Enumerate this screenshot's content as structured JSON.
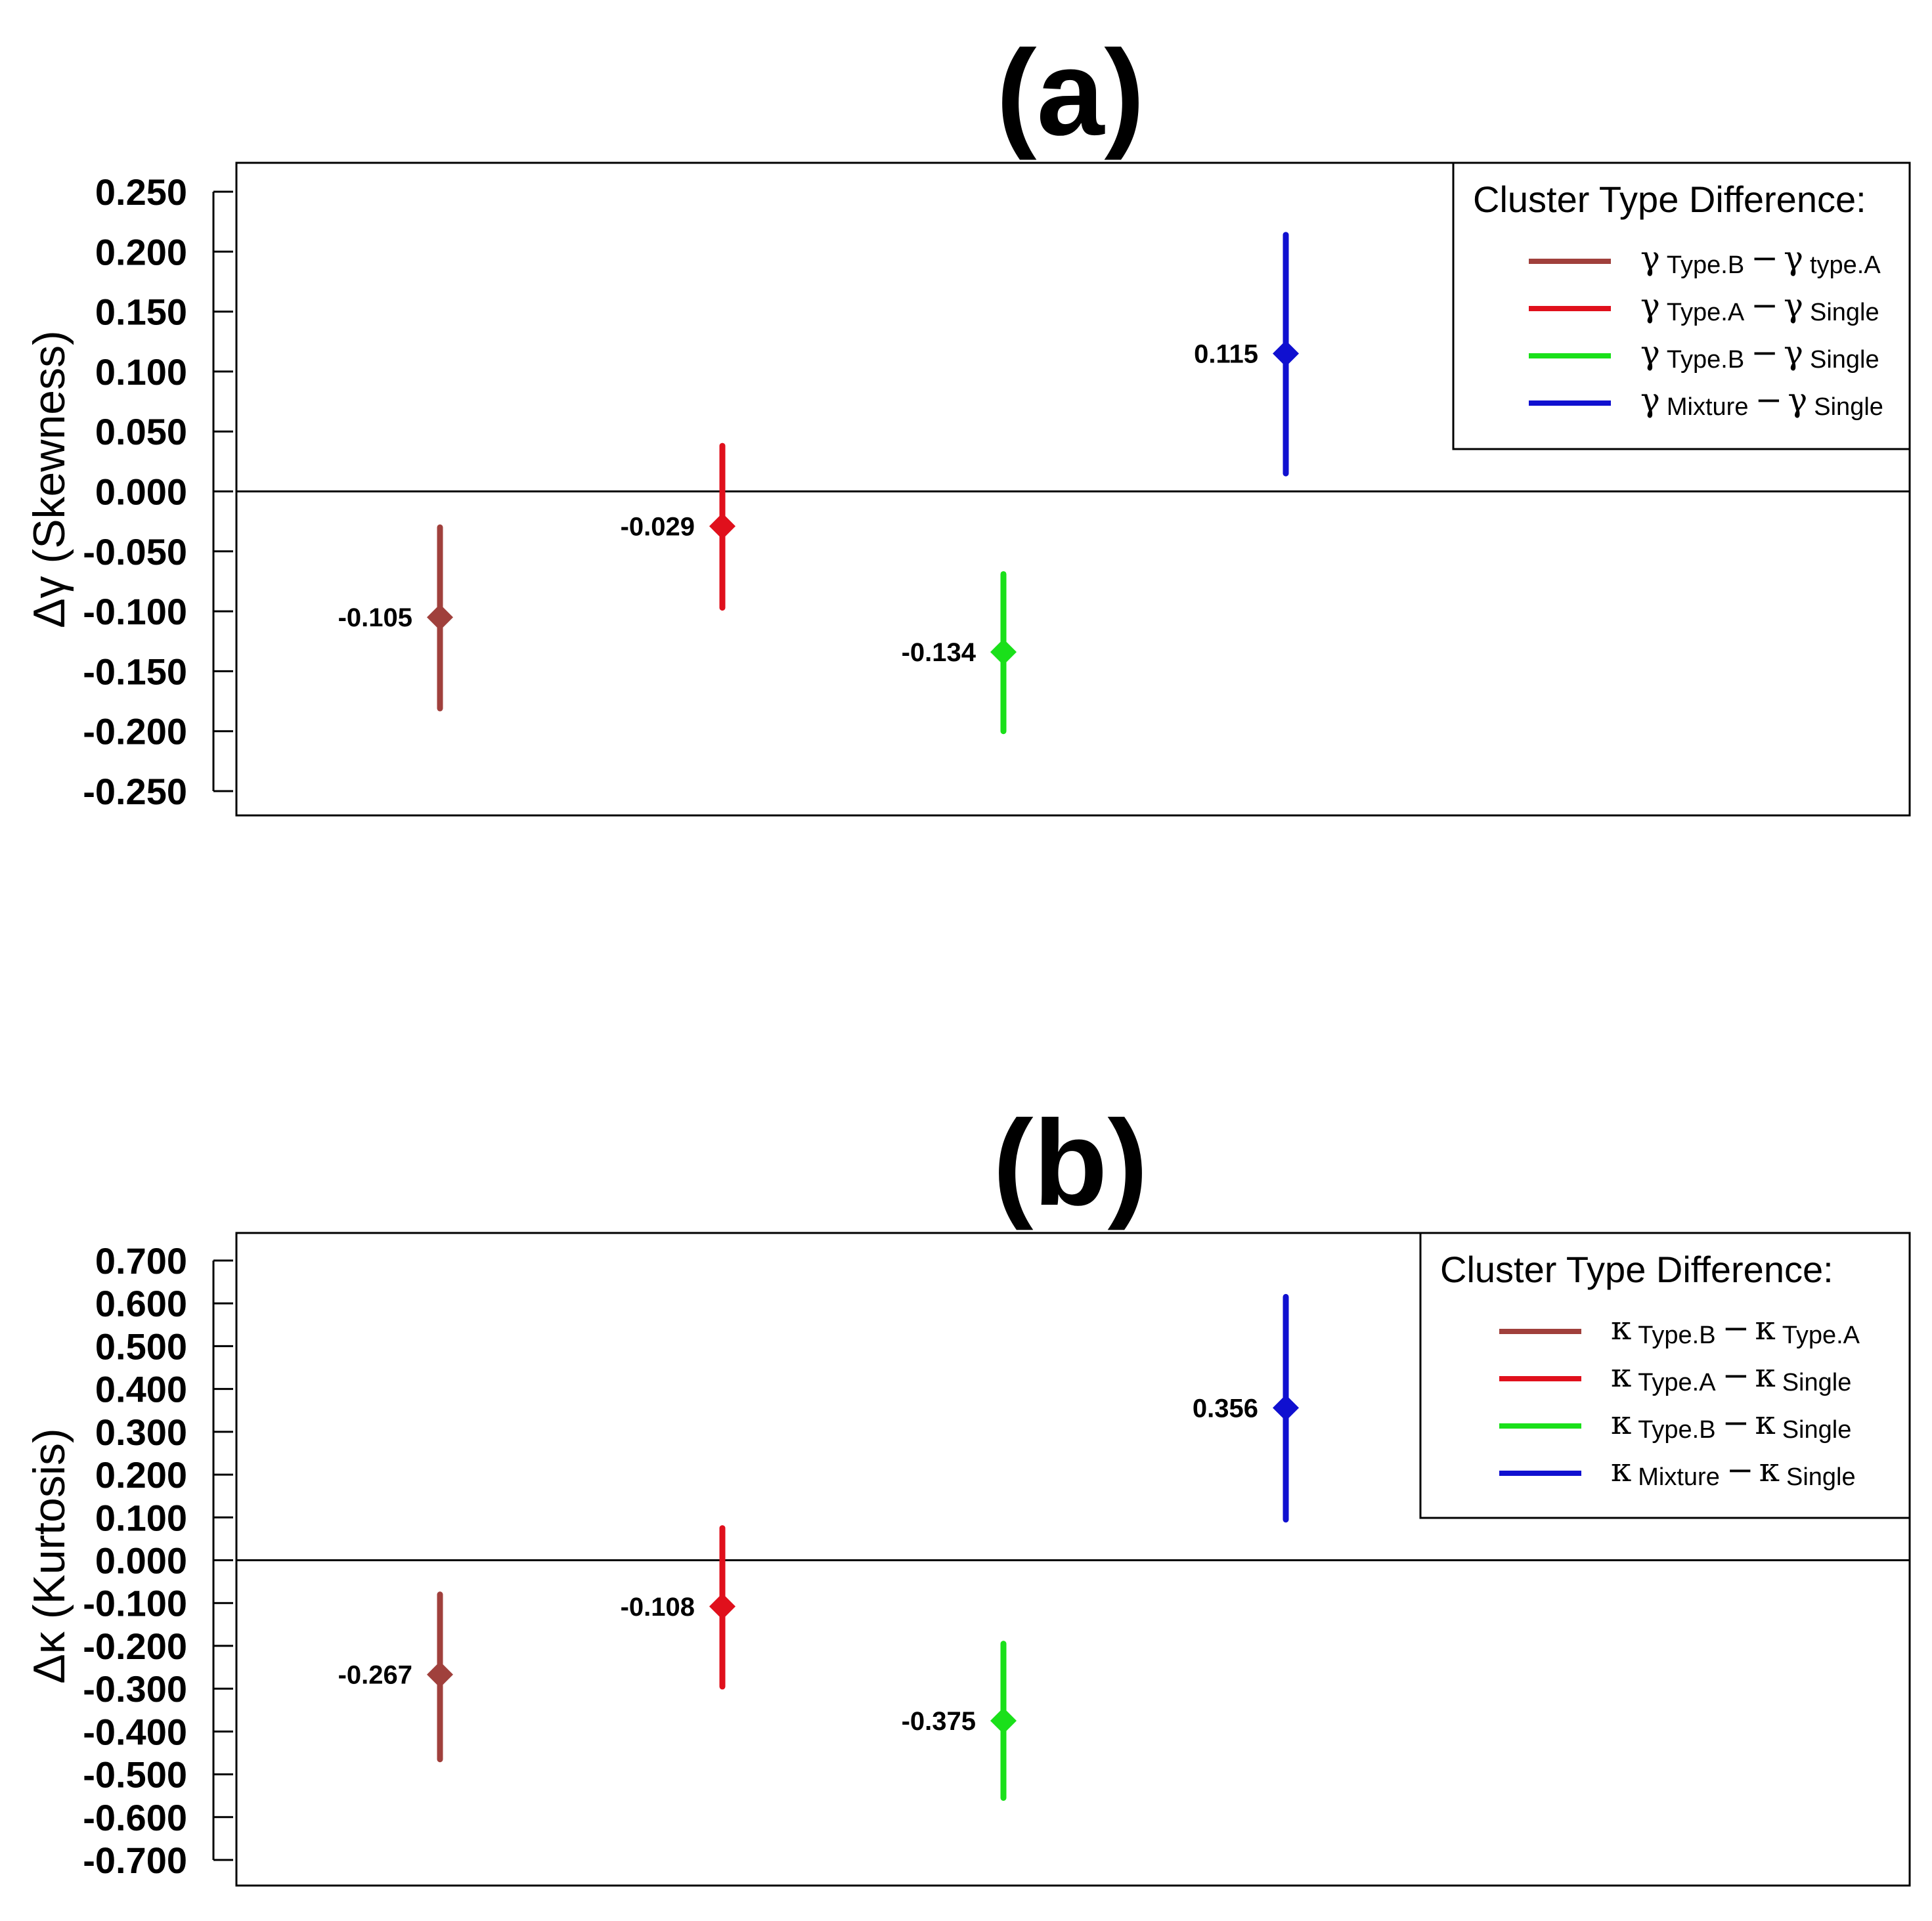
{
  "chart_data": [
    {
      "type": "errorbar",
      "title": "(a)",
      "ylabel": "Δγ (Skewness)",
      "ylim": [
        -0.25,
        0.25
      ],
      "yticks": [
        "0.250",
        "0.200",
        "0.150",
        "0.100",
        "0.050",
        "0.000",
        "-0.050",
        "-0.100",
        "-0.150",
        "-0.200",
        "-0.250"
      ],
      "reference_line": 0,
      "legend": {
        "title": "Cluster Type Difference:",
        "placement": "top-right",
        "symbol": "γ",
        "entries": [
          {
            "a": "Type.B",
            "b": "type.A",
            "color": "#a0403c"
          },
          {
            "a": "Type.A",
            "b": "Single",
            "color": "#e0101c"
          },
          {
            "a": "Type.B",
            "b": "Single",
            "color": "#1ae01a"
          },
          {
            "a": "Mixture",
            "b": "Single",
            "color": "#1010d0"
          }
        ]
      },
      "series": [
        {
          "value": -0.105,
          "label": "-0.105",
          "lower": -0.181,
          "upper": -0.03,
          "color": "#a0403c"
        },
        {
          "value": -0.029,
          "label": "-0.029",
          "lower": -0.097,
          "upper": 0.038,
          "color": "#e0101c"
        },
        {
          "value": -0.134,
          "label": "-0.134",
          "lower": -0.2,
          "upper": -0.069,
          "color": "#1ae01a"
        },
        {
          "value": 0.115,
          "label": "0.115",
          "lower": 0.015,
          "upper": 0.214,
          "color": "#1010d0"
        }
      ]
    },
    {
      "type": "errorbar",
      "title": "(b)",
      "ylabel": "Δκ (Kurtosis)",
      "ylim": [
        -0.7,
        0.7
      ],
      "yticks": [
        "0.700",
        "0.600",
        "0.500",
        "0.400",
        "0.300",
        "0.200",
        "0.100",
        "0.000",
        "-0.100",
        "-0.200",
        "-0.300",
        "-0.400",
        "-0.500",
        "-0.600",
        "-0.700"
      ],
      "reference_line": 0,
      "legend": {
        "title": "Cluster Type Difference:",
        "placement": "top-right",
        "symbol": "κ",
        "entries": [
          {
            "a": "Type.B",
            "b": "Type.A",
            "color": "#a0403c"
          },
          {
            "a": "Type.A",
            "b": "Single",
            "color": "#e0101c"
          },
          {
            "a": "Type.B",
            "b": "Single",
            "color": "#1ae01a"
          },
          {
            "a": "Mixture",
            "b": "Single",
            "color": "#1010d0"
          }
        ]
      },
      "series": [
        {
          "value": -0.267,
          "label": "-0.267",
          "lower": -0.465,
          "upper": -0.08,
          "color": "#a0403c"
        },
        {
          "value": -0.108,
          "label": "-0.108",
          "lower": -0.295,
          "upper": 0.075,
          "color": "#e0101c"
        },
        {
          "value": -0.375,
          "label": "-0.375",
          "lower": -0.555,
          "upper": -0.195,
          "color": "#1ae01a"
        },
        {
          "value": 0.356,
          "label": "0.356",
          "lower": 0.095,
          "upper": 0.615,
          "color": "#1010d0"
        }
      ]
    }
  ]
}
